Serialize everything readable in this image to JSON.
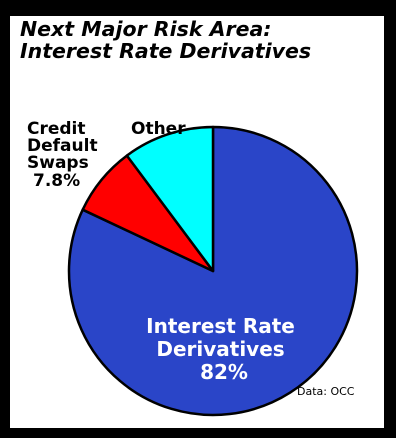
{
  "chart_data": {
    "type": "pie",
    "title_lines": [
      "Next Major Risk Area:",
      "Interest Rate Derivatives"
    ],
    "source": "Data: OCC",
    "slices": [
      {
        "name": "Interest Rate Derivatives",
        "label_lines": [
          "Interest Rate",
          "Derivatives",
          "82%"
        ],
        "value": 82,
        "color": "#2a45c8"
      },
      {
        "name": "Credit Default Swaps",
        "label_lines": [
          "Credit",
          "Default",
          "Swaps",
          "7.8%"
        ],
        "value": 7.8,
        "color": "#ff0000"
      },
      {
        "name": "Other",
        "label_lines": [
          "Other"
        ],
        "value": 10.2,
        "color": "#00ffff"
      }
    ]
  }
}
